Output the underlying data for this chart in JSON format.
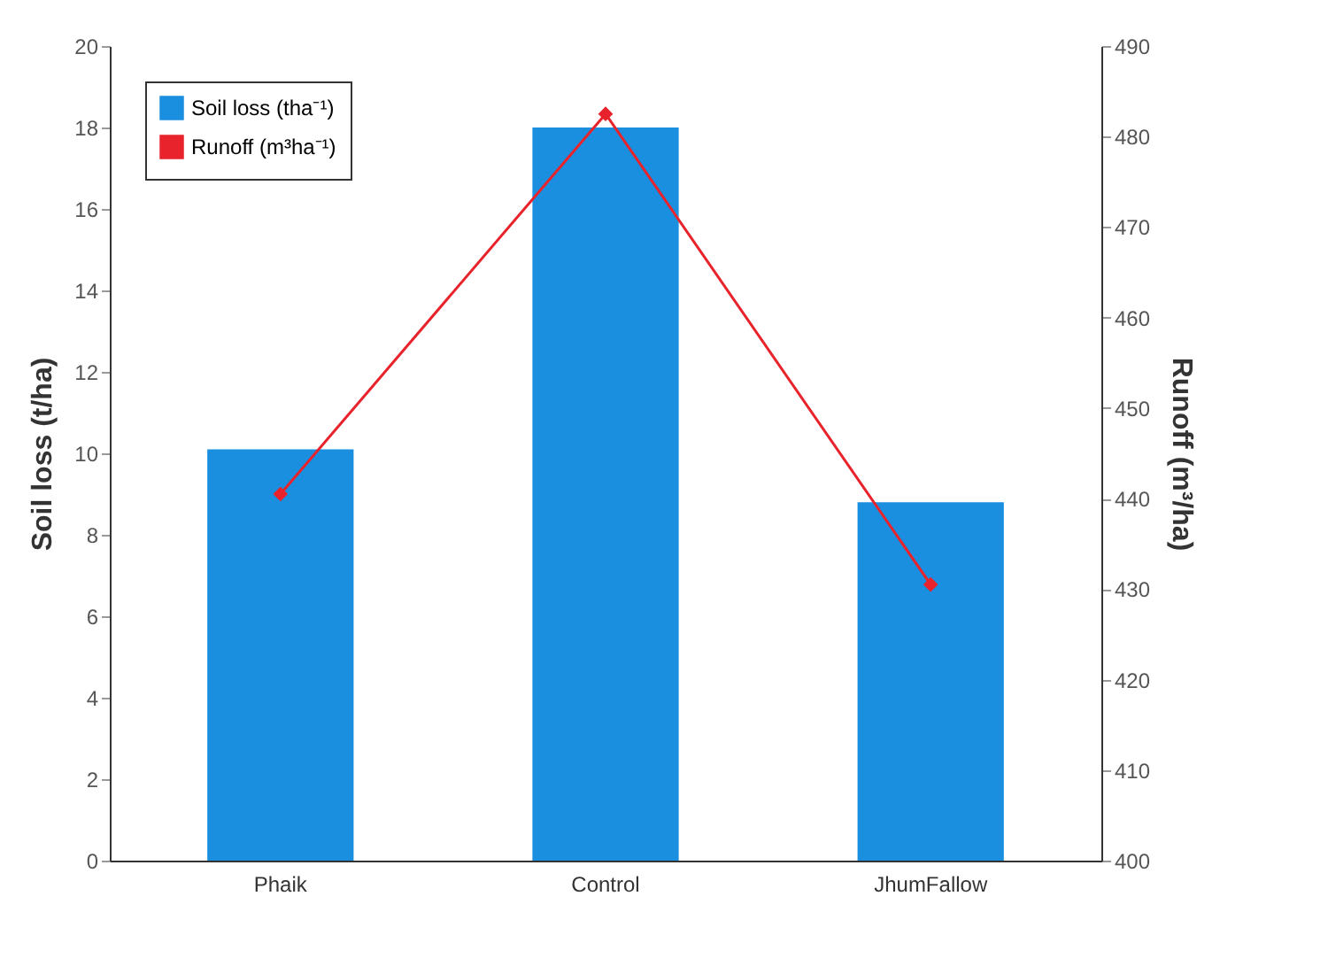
{
  "chart_data": {
    "type": "bar",
    "ylabel": "Soil loss (t/ha)",
    "y2label": "Runoff (m³/ha)",
    "categories": [
      "Phaik",
      "Control",
      "JhumFallow"
    ],
    "series": [
      {
        "name": "Soil loss (tha⁻¹)",
        "color": "#1b8fdf",
        "values": [
          10.1,
          18,
          8.8
        ]
      },
      {
        "name": "Runoff (m³ha⁻¹)",
        "type": "line",
        "axis": "y2",
        "color": "#e8232b",
        "marker": "diamond",
        "values": [
          440.5,
          482.5,
          430.5
        ]
      }
    ],
    "ylim": [
      0,
      20
    ],
    "yticks": [
      0,
      2,
      4,
      6,
      8,
      10,
      12,
      14,
      16,
      18,
      20
    ],
    "y2lim": [
      400,
      490
    ],
    "y2ticks": [
      400,
      410,
      420,
      430,
      440,
      450,
      460,
      470,
      480,
      490
    ],
    "grid": false,
    "legend": "top left"
  }
}
